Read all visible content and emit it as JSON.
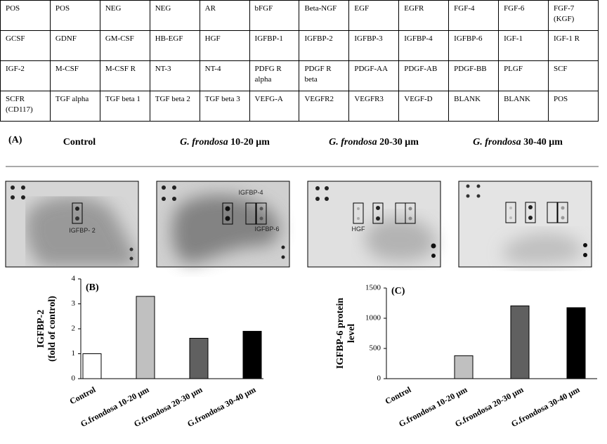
{
  "table": {
    "rows": [
      [
        "POS",
        "POS",
        "NEG",
        "NEG",
        "AR",
        "bFGF",
        "Beta-NGF",
        "EGF",
        "EGFR",
        "FGF-4",
        "FGF-6",
        "FGF-7 (KGF)"
      ],
      [
        "GCSF",
        "GDNF",
        "GM-CSF",
        "HB-EGF",
        "HGF",
        "IGFBP-1",
        "IGFBP-2",
        "IGFBP-3",
        "IGFBP-4",
        "IGFBP-6",
        "IGF-1",
        "IGF-1 R"
      ],
      [
        "IGF-2",
        "M-CSF",
        "M-CSF R",
        "NT-3",
        "NT-4",
        "PDFG R alpha",
        "PDGF R beta",
        "PDGF-AA",
        "PDGF-AB",
        "PDGF-BB",
        "PLGF",
        "SCF"
      ],
      [
        "SCFR (CD117)",
        "TGF alpha",
        "TGF beta 1",
        "TGF beta 2",
        "TGF beta 3",
        "VEFG-A",
        "VEGFR2",
        "VEGFR3",
        "VEGF-D",
        "BLANK",
        "BLANK",
        "POS"
      ]
    ]
  },
  "panel_a": {
    "label": "(A)",
    "headings": [
      {
        "text": "Control"
      },
      {
        "species": "G. frondosa",
        "size": "10-20 μm"
      },
      {
        "species": "G. frondosa",
        "size": "20-30 μm"
      },
      {
        "species": "G. frondosa",
        "size": "30-40 μm"
      }
    ]
  },
  "blots": {
    "labels": [
      "IGFBP- 2",
      "IGFBP-4",
      "IGFBP-6",
      "HGF"
    ]
  },
  "chart_data": [
    {
      "type": "bar",
      "panel_label": "(B)",
      "ylabel": [
        "IGFBP-2",
        "(fold of control)"
      ],
      "categories": [
        "Control",
        "G.frondosa 10-20 μm",
        "G.frondosa 20-30 μm",
        "G.frondosa 30-40 μm"
      ],
      "values": [
        1,
        3.3,
        1.62,
        1.9
      ],
      "colors": [
        "#ffffff",
        "#c0c0c0",
        "#606060",
        "#000000"
      ],
      "ylim": [
        0,
        4
      ],
      "yticks": [
        0,
        1,
        2,
        3,
        4
      ]
    },
    {
      "type": "bar",
      "panel_label": "(C)",
      "ylabel": [
        "IGFBP-6 protein",
        "level"
      ],
      "categories": [
        "Control",
        "G.frondosa 10-20 μm",
        "G.frondosa 20-30 μm",
        "G.frondosa 30-40 μm"
      ],
      "values": [
        0,
        380,
        1205,
        1175
      ],
      "colors": [
        "#ffffff",
        "#c0c0c0",
        "#606060",
        "#000000"
      ],
      "ylim": [
        0,
        1500
      ],
      "yticks": [
        0,
        500,
        1000,
        1500
      ]
    }
  ]
}
